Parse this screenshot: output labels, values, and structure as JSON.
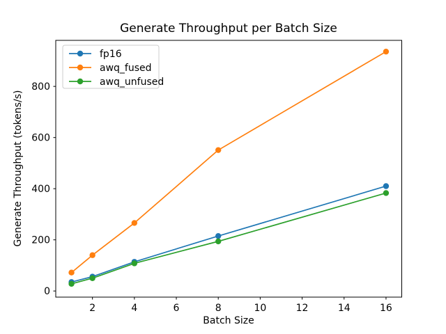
{
  "figure": {
    "background": "#ffffff"
  },
  "chart_data": {
    "type": "line",
    "title": "Generate Throughput per Batch Size",
    "xlabel": "Batch Size",
    "ylabel": "Generate Throughput (tokens/s)",
    "x": [
      1,
      2,
      4,
      8,
      16
    ],
    "series": [
      {
        "name": "fp16",
        "color": "#1f77b4",
        "values": [
          35,
          56,
          114,
          215,
          410
        ]
      },
      {
        "name": "awq_fused",
        "color": "#ff7f0e",
        "values": [
          72,
          140,
          266,
          551,
          936
        ]
      },
      {
        "name": "awq_unfused",
        "color": "#2ca02c",
        "values": [
          28,
          50,
          108,
          194,
          383
        ]
      }
    ],
    "xticks": [
      2,
      4,
      6,
      8,
      10,
      12,
      14,
      16
    ],
    "yticks": [
      0,
      200,
      400,
      600,
      800
    ],
    "xlim": [
      0.25,
      16.75
    ],
    "ylim": [
      -24,
      980
    ],
    "grid": false,
    "marker": "circle",
    "legend_position": "upper left",
    "axis_color": "#000000",
    "legend_border_color": "#cccccc",
    "legend_background": "#ffffff"
  }
}
